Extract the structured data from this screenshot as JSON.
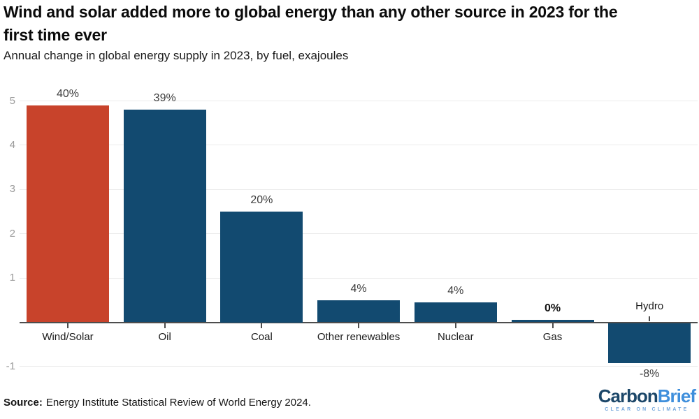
{
  "chart_data": {
    "type": "bar",
    "title": "Wind and solar added more to global energy than any other source in 2023 for the first time ever",
    "subtitle": "Annual change in global energy supply in 2023, by fuel, exajoules",
    "unit": "exajoules (EJ)",
    "y_axis": {
      "ticks": [
        5,
        4,
        3,
        2,
        1,
        -1
      ],
      "range": [
        -1.3,
        5.5
      ],
      "zero_line": true,
      "grid": true
    },
    "points": [
      {
        "category": "Wind/Solar",
        "value_ej": 4.9,
        "label": "40%",
        "color": "#C8432B",
        "label_bold": false
      },
      {
        "category": "Oil",
        "value_ej": 4.8,
        "label": "39%",
        "color": "#124A70",
        "label_bold": false
      },
      {
        "category": "Coal",
        "value_ej": 2.5,
        "label": "20%",
        "color": "#124A70",
        "label_bold": false
      },
      {
        "category": "Other renewables",
        "value_ej": 0.5,
        "label": "4%",
        "color": "#124A70",
        "label_bold": false
      },
      {
        "category": "Nuclear",
        "value_ej": 0.45,
        "label": "4%",
        "color": "#124A70",
        "label_bold": false
      },
      {
        "category": "Gas",
        "value_ej": 0.06,
        "label": "0%",
        "color": "#124A70",
        "label_bold": true
      },
      {
        "category": "Hydro",
        "value_ej": -0.9,
        "label": "-8%",
        "color": "#124A70",
        "label_bold": false
      }
    ],
    "colors": {
      "highlight": "#C8432B",
      "default": "#124A70"
    },
    "legend": false
  },
  "header": {
    "title_line1": "Wind and solar added more to global energy than any other source in 2023 for the",
    "title_line2": "first time ever",
    "subtitle": "Annual change in global energy supply in 2023, by fuel, exajoules"
  },
  "footer": {
    "source_label": "Source:",
    "source_text": "Energy Institute Statistical Review of World Energy 2024.",
    "logo": {
      "word1": "Carbon",
      "word2": "Brief",
      "tagline": "CLEAR ON CLIMATE",
      "word1_color": "#1C4769",
      "word2_color": "#3F8FDC",
      "tagline_color": "#74A7DC"
    }
  }
}
